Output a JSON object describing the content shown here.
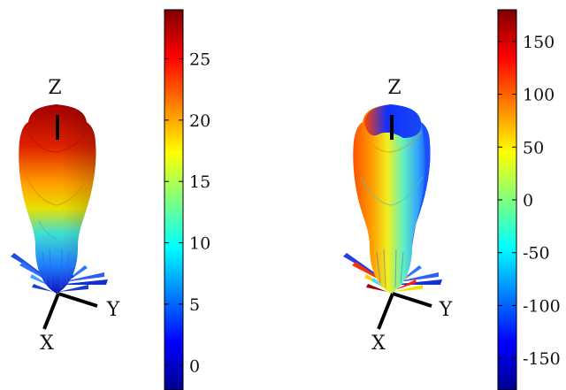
{
  "panels": [
    {
      "id": "left",
      "axis_labels": {
        "x": "X",
        "y": "Y",
        "z": "Z"
      },
      "colorbar": {
        "colormap": "jet",
        "min": -2,
        "max": 29,
        "ticks": [
          "0",
          "5",
          "10",
          "15",
          "20",
          "25"
        ],
        "tick_values": [
          0,
          5,
          10,
          15,
          20,
          25
        ]
      }
    },
    {
      "id": "right",
      "axis_labels": {
        "x": "X",
        "y": "Y",
        "z": "Z"
      },
      "colorbar": {
        "colormap": "jet",
        "min": -180,
        "max": 180,
        "ticks": [
          "150",
          "100",
          "50",
          "0",
          "-50",
          "-100",
          "-150"
        ],
        "tick_values": [
          150,
          100,
          50,
          0,
          -50,
          -100,
          -150
        ]
      }
    }
  ],
  "colors": {
    "jet_dark_red": "#7f0000",
    "jet_red": "#ff0000",
    "jet_orange": "#ff8000",
    "jet_yellow": "#ffff00",
    "jet_cyan": "#00ffff",
    "jet_blue": "#0000ff",
    "jet_dark_blue": "#00008f"
  }
}
